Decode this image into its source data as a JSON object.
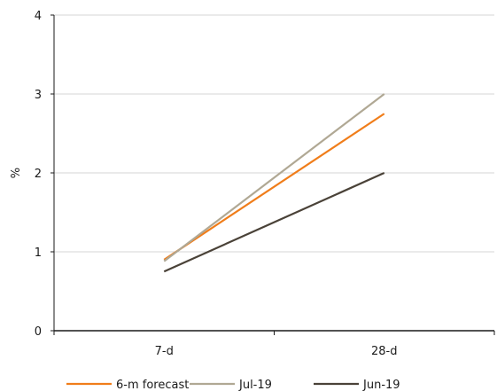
{
  "chart_data": {
    "type": "line",
    "categories": [
      "7-d",
      "28-d"
    ],
    "ylabel": "%",
    "xlabel": "",
    "ylim": [
      0,
      4
    ],
    "yticks": [
      "0",
      "1",
      "2",
      "3",
      "4"
    ],
    "grid": "horizontal",
    "legend_position": "bottom",
    "series": [
      {
        "name": "6-m forecast",
        "values": [
          0.9,
          2.75
        ],
        "color": "#f07d1a"
      },
      {
        "name": "Jul-19",
        "values": [
          0.88,
          3.0
        ],
        "color": "#b0a894"
      },
      {
        "name": "Jun-19",
        "values": [
          0.75,
          2.0
        ],
        "color": "#4a4238"
      }
    ]
  }
}
